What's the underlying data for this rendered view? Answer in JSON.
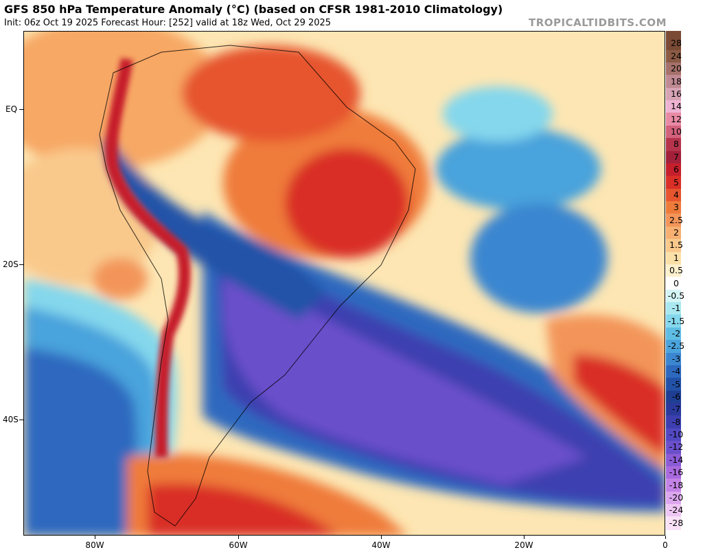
{
  "header": {
    "title": "GFS 850 hPa Temperature Anomaly (°C) (based on CFSR 1981-2010 Climatology)",
    "subtitle": "Init: 06z Oct 19 2025   Forecast Hour: [252]   valid at 18z Wed, Oct 29 2025",
    "brand": "TROPICALTIDBITS.COM"
  },
  "axes": {
    "lat_labels": [
      "EQ",
      "20S",
      "40S"
    ],
    "lon_labels": [
      "80W",
      "60W",
      "40W",
      "20W",
      "0"
    ]
  },
  "colorbar": {
    "labels": [
      "28",
      "24",
      "20",
      "18",
      "16",
      "14",
      "12",
      "10",
      "8",
      "7",
      "6",
      "5",
      "4",
      "3",
      "2.5",
      "2",
      "1.5",
      "1",
      "0.5",
      "0",
      "-0.5",
      "-1",
      "-1.5",
      "-2",
      "-2.5",
      "-3",
      "-4",
      "-5",
      "-6",
      "-7",
      "-8",
      "-10",
      "-12",
      "-14",
      "-16",
      "-18",
      "-20",
      "-24",
      "-28"
    ],
    "colors": [
      "#7a4a35",
      "#8a5a45",
      "#a6716a",
      "#c08a93",
      "#d7a4b6",
      "#eeb3d3",
      "#e98aa5",
      "#d2617c",
      "#b5344c",
      "#a3203a",
      "#c61f2c",
      "#d92f27",
      "#e6552e",
      "#ef7b3a",
      "#f3955a",
      "#f7b071",
      "#f9c98c",
      "#fbe0a8",
      "#fdf0cc",
      "#ffffff",
      "#d4f4f6",
      "#a9e8f0",
      "#84d7ec",
      "#5fbde4",
      "#4aa3dc",
      "#3a86d0",
      "#2d69bf",
      "#2252a8",
      "#1e3f93",
      "#2a3a9c",
      "#3d3fb0",
      "#5148c2",
      "#6b4fcb",
      "#8c5bd6",
      "#a96ade",
      "#c483e6",
      "#dba6ee",
      "#eec6f3",
      "#f9e2f7"
    ]
  }
}
